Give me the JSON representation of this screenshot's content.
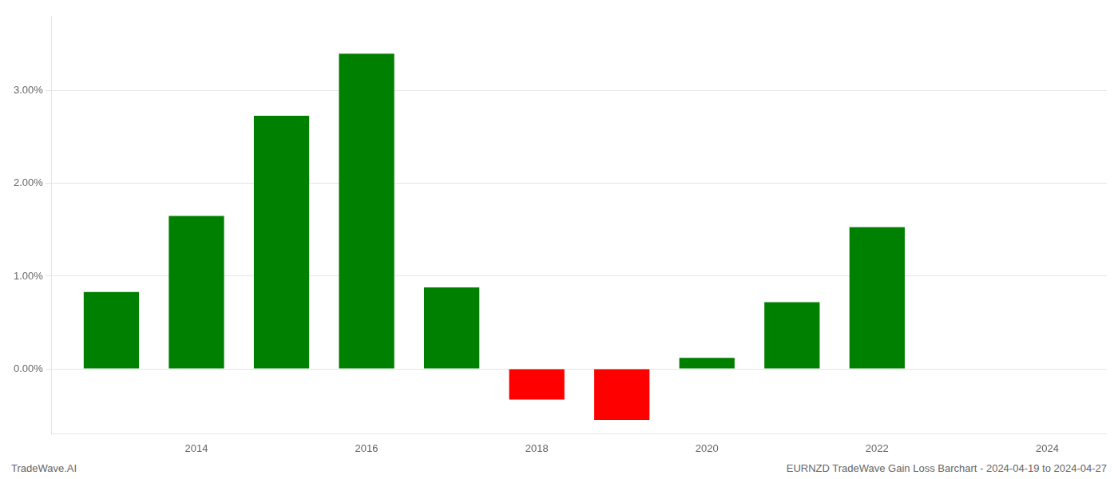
{
  "chart_data": {
    "type": "bar",
    "x": [
      2013,
      2014,
      2015,
      2016,
      2017,
      2018,
      2019,
      2020,
      2021,
      2022,
      2023
    ],
    "values": [
      0.0083,
      0.0165,
      0.0273,
      0.034,
      0.0088,
      -0.0033,
      -0.0055,
      0.0012,
      0.0072,
      0.0153,
      0.0
    ],
    "colors": [
      "#008000",
      "#008000",
      "#008000",
      "#008000",
      "#008000",
      "#ff0000",
      "#ff0000",
      "#008000",
      "#008000",
      "#008000",
      "#008000"
    ],
    "xlim": [
      2012.3,
      2024.7
    ],
    "xticks": [
      2014,
      2016,
      2018,
      2020,
      2022,
      2024
    ],
    "ylim": [
      -0.007,
      0.038
    ],
    "yticks": [
      {
        "value": 0.0,
        "label": "0.00%"
      },
      {
        "value": 0.01,
        "label": "1.00%"
      },
      {
        "value": 0.02,
        "label": "2.00%"
      },
      {
        "value": 0.03,
        "label": "3.00%"
      }
    ],
    "grid": "y",
    "annotations": [
      "TradeWave.AI",
      "EURNZD TradeWave Gain Loss Barchart - 2024-04-19 to 2024-04-27"
    ]
  }
}
